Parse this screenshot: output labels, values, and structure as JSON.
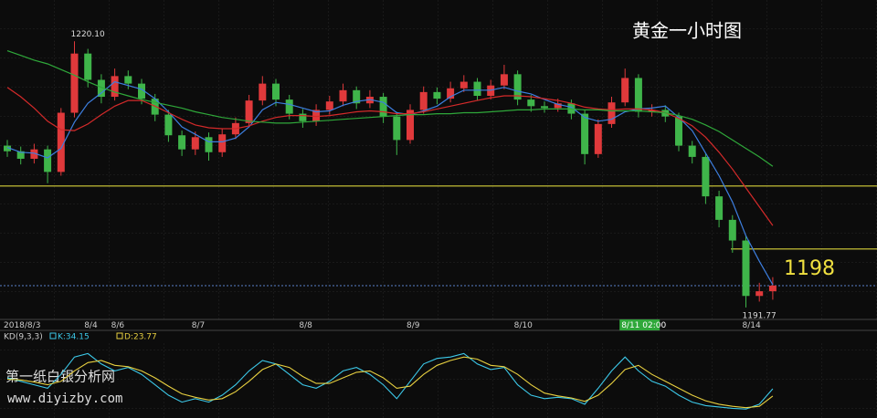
{
  "chart_data": {
    "type": "candlestick",
    "title": "黄金一小时图",
    "categories": [
      "2018/8/3",
      null,
      null,
      null,
      null,
      null,
      "8/4",
      null,
      "8/6",
      null,
      null,
      null,
      null,
      null,
      "8/7",
      null,
      null,
      null,
      null,
      null,
      null,
      null,
      "8/8",
      null,
      null,
      null,
      null,
      null,
      null,
      null,
      "8/9",
      null,
      null,
      null,
      null,
      null,
      null,
      null,
      "8/10",
      null,
      null,
      null,
      null,
      null,
      null,
      null,
      "8/11 02:00",
      null,
      null,
      null,
      null,
      null,
      null,
      null,
      null,
      "8/14",
      null,
      null
    ],
    "open": [
      1209.0,
      1208.4,
      1207.6,
      1208.6,
      1206.2,
      1212.5,
      1218.8,
      1216.0,
      1214.2,
      1216.4,
      1215.6,
      1214.0,
      1212.3,
      1210.1,
      1208.6,
      1209.9,
      1208.3,
      1210.2,
      1211.4,
      1213.8,
      1215.6,
      1213.9,
      1212.4,
      1211.6,
      1212.8,
      1213.7,
      1214.9,
      1213.5,
      1214.2,
      1212.1,
      1209.6,
      1212.8,
      1214.7,
      1214.0,
      1215.1,
      1215.8,
      1214.3,
      1215.4,
      1216.6,
      1213.9,
      1213.2,
      1213.0,
      1213.5,
      1212.4,
      1208.1,
      1211.3,
      1213.6,
      1216.2,
      1212.6,
      1212.8,
      1212.1,
      1209.0,
      1207.8,
      1203.6,
      1201.1,
      1198.9,
      1193.0,
      1193.5
    ],
    "high": [
      1209.6,
      1208.9,
      1209.2,
      1209.0,
      1213.0,
      1220.1,
      1219.3,
      1216.6,
      1217.2,
      1217.0,
      1216.1,
      1214.5,
      1212.8,
      1210.6,
      1210.5,
      1210.4,
      1210.8,
      1212.0,
      1214.4,
      1216.4,
      1216.1,
      1214.4,
      1212.9,
      1213.4,
      1214.3,
      1215.6,
      1215.3,
      1214.9,
      1214.6,
      1212.6,
      1213.4,
      1215.3,
      1215.2,
      1215.8,
      1216.5,
      1216.2,
      1216.0,
      1217.6,
      1217.0,
      1214.4,
      1213.7,
      1214.0,
      1213.9,
      1212.8,
      1211.8,
      1214.2,
      1217.2,
      1216.6,
      1213.4,
      1213.3,
      1212.5,
      1209.5,
      1208.2,
      1204.2,
      1201.6,
      1199.4,
      1194.4,
      1195.0
    ],
    "low": [
      1207.8,
      1207.0,
      1207.1,
      1205.0,
      1205.8,
      1212.0,
      1215.2,
      1213.5,
      1213.8,
      1215.0,
      1213.4,
      1211.6,
      1209.4,
      1207.9,
      1208.0,
      1207.4,
      1207.8,
      1209.7,
      1211.0,
      1213.3,
      1213.2,
      1211.8,
      1210.9,
      1211.1,
      1212.3,
      1213.2,
      1212.9,
      1213.0,
      1211.4,
      1208.0,
      1209.2,
      1212.4,
      1213.4,
      1213.6,
      1214.7,
      1213.8,
      1213.9,
      1215.0,
      1213.3,
      1212.6,
      1212.5,
      1212.6,
      1211.8,
      1207.0,
      1207.7,
      1210.9,
      1213.2,
      1212.0,
      1212.1,
      1211.5,
      1208.4,
      1207.1,
      1202.8,
      1200.3,
      1197.6,
      1191.77,
      1192.4,
      1192.6
    ],
    "close": [
      1208.4,
      1207.6,
      1208.6,
      1206.2,
      1212.5,
      1218.8,
      1216.0,
      1214.2,
      1216.4,
      1215.6,
      1214.0,
      1212.3,
      1210.1,
      1208.6,
      1209.9,
      1208.3,
      1210.2,
      1211.4,
      1213.8,
      1215.6,
      1213.9,
      1212.4,
      1211.6,
      1212.8,
      1213.7,
      1214.9,
      1213.5,
      1214.2,
      1212.1,
      1209.6,
      1212.8,
      1214.7,
      1214.0,
      1215.1,
      1215.8,
      1214.3,
      1215.4,
      1216.6,
      1213.9,
      1213.2,
      1213.0,
      1213.5,
      1212.4,
      1208.1,
      1211.3,
      1213.6,
      1216.2,
      1212.6,
      1212.8,
      1212.1,
      1209.0,
      1207.8,
      1203.6,
      1201.1,
      1198.9,
      1193.0,
      1193.5,
      1194.1
    ],
    "up_color": "#e0393b",
    "down_color": "#3fb54a",
    "ylim": [
      1190.5,
      1224.5
    ],
    "moving_averages": [
      {
        "color": "#3d7fe0",
        "values": [
          1208.8,
          1208.3,
          1208.2,
          1207.7,
          1208.7,
          1211.5,
          1213.5,
          1214.6,
          1215.8,
          1215.4,
          1215.0,
          1214.0,
          1212.6,
          1211.0,
          1210.2,
          1209.4,
          1209.4,
          1209.8,
          1211.0,
          1212.8,
          1213.6,
          1213.4,
          1213.0,
          1212.6,
          1212.7,
          1213.3,
          1213.7,
          1213.9,
          1213.6,
          1212.5,
          1212.3,
          1212.7,
          1213.2,
          1214.2,
          1214.9,
          1214.9,
          1214.9,
          1215.2,
          1214.8,
          1214.5,
          1213.9,
          1213.4,
          1213.1,
          1212.0,
          1211.6,
          1211.8,
          1212.6,
          1212.9,
          1213.0,
          1213.2,
          1212.0,
          1210.6,
          1208.2,
          1205.8,
          1203.0,
          1199.4,
          1196.7,
          1194.2
        ]
      },
      {
        "color": "#d42a2a",
        "values": [
          1215.2,
          1214.2,
          1213.0,
          1211.6,
          1210.7,
          1210.6,
          1211.3,
          1212.3,
          1213.2,
          1213.8,
          1213.8,
          1213.2,
          1212.5,
          1211.8,
          1211.2,
          1210.9,
          1210.8,
          1210.8,
          1211.1,
          1211.6,
          1212.0,
          1212.2,
          1212.2,
          1212.1,
          1212.2,
          1212.4,
          1212.6,
          1212.7,
          1212.6,
          1212.4,
          1212.4,
          1212.6,
          1212.9,
          1213.2,
          1213.5,
          1213.8,
          1214.1,
          1214.3,
          1214.3,
          1214.2,
          1214.0,
          1213.8,
          1213.5,
          1213.1,
          1212.9,
          1212.8,
          1212.9,
          1212.9,
          1212.8,
          1212.5,
          1211.9,
          1211.1,
          1209.9,
          1208.3,
          1206.5,
          1204.5,
          1202.5,
          1200.5
        ]
      },
      {
        "color": "#2fa83a",
        "values": [
          1219.1,
          1218.6,
          1218.1,
          1217.7,
          1217.1,
          1216.5,
          1215.8,
          1215.2,
          1214.7,
          1214.3,
          1213.9,
          1213.6,
          1213.3,
          1213.0,
          1212.6,
          1212.3,
          1212.0,
          1211.8,
          1211.6,
          1211.5,
          1211.4,
          1211.4,
          1211.5,
          1211.6,
          1211.7,
          1211.8,
          1211.9,
          1212.0,
          1212.1,
          1212.2,
          1212.3,
          1212.3,
          1212.4,
          1212.4,
          1212.5,
          1212.5,
          1212.6,
          1212.7,
          1212.8,
          1212.8,
          1212.9,
          1212.9,
          1212.9,
          1212.8,
          1212.8,
          1212.7,
          1212.7,
          1212.7,
          1212.6,
          1212.5,
          1212.2,
          1211.8,
          1211.2,
          1210.5,
          1209.6,
          1208.7,
          1207.8,
          1206.8
        ]
      }
    ],
    "levels": [
      {
        "value": 1204.7,
        "color": "#d8d23a"
      },
      {
        "value": 1198,
        "color": "#d8d23a"
      }
    ],
    "last_price": 1194.1,
    "annotations": [
      {
        "value": 1220.1,
        "label": "1220.10"
      },
      {
        "value": 1191.77,
        "label": "1191.77"
      }
    ],
    "indicator": {
      "title": "KD(9,3,3)",
      "ylim": [
        0,
        100
      ],
      "series": [
        {
          "name": "K:34.15",
          "color": "#3cc8e8",
          "values": [
            50,
            45,
            40,
            35,
            55,
            80,
            85,
            70,
            60,
            65,
            55,
            40,
            25,
            15,
            20,
            15,
            25,
            40,
            60,
            75,
            70,
            55,
            40,
            35,
            45,
            60,
            65,
            55,
            40,
            20,
            45,
            70,
            78,
            80,
            85,
            70,
            62,
            65,
            40,
            25,
            20,
            22,
            20,
            12,
            35,
            60,
            80,
            60,
            45,
            38,
            25,
            15,
            10,
            8,
            6,
            5,
            12,
            34.15
          ]
        },
        {
          "name": "D:23.77",
          "color": "#e8d040",
          "values": [
            48,
            47,
            44,
            40,
            45,
            60,
            72,
            75,
            68,
            66,
            60,
            50,
            38,
            27,
            22,
            18,
            20,
            30,
            45,
            62,
            70,
            65,
            52,
            42,
            42,
            50,
            58,
            60,
            50,
            35,
            38,
            55,
            68,
            75,
            80,
            77,
            68,
            66,
            55,
            40,
            28,
            24,
            21,
            16,
            25,
            42,
            62,
            68,
            55,
            45,
            35,
            25,
            17,
            12,
            9,
            7,
            9,
            23.77
          ]
        }
      ]
    },
    "watermark": [
      "第一纸白银分析网",
      "www.diyizby.com"
    ]
  }
}
